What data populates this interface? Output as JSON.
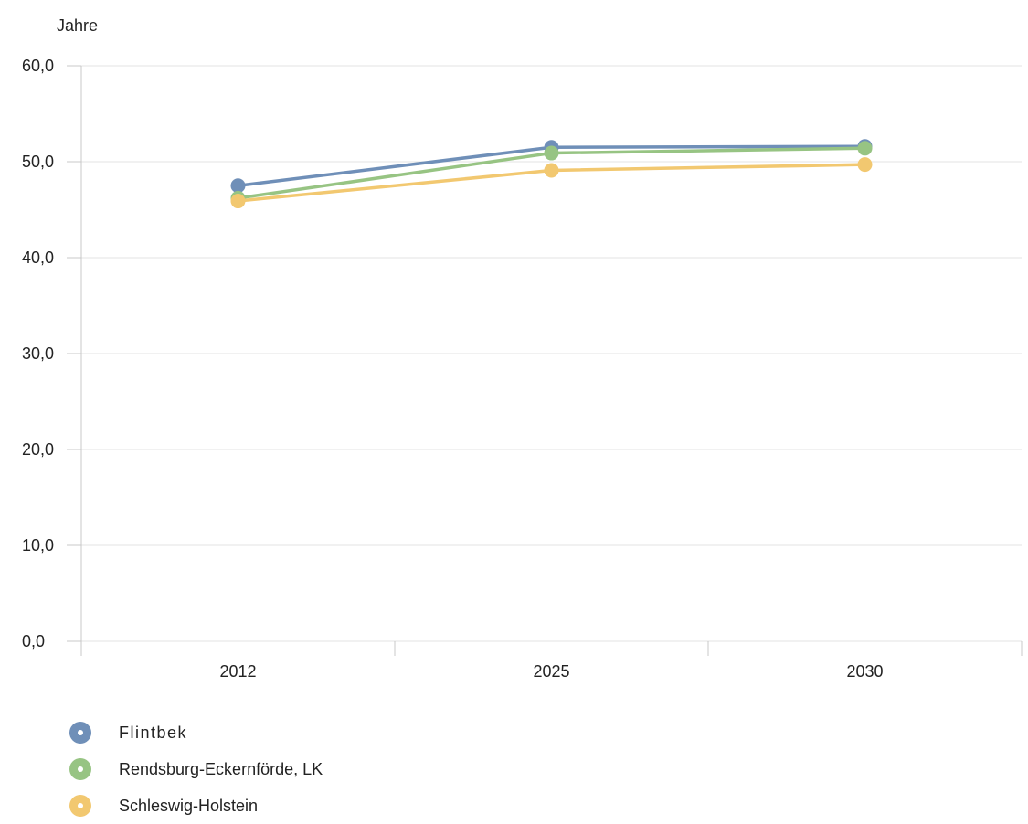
{
  "chart_data": {
    "type": "line",
    "title": "",
    "unit_label": "Jahre",
    "xlabel": "",
    "ylabel": "Jahre",
    "categories": [
      "2012",
      "2025",
      "2030"
    ],
    "ylim": [
      0,
      60
    ],
    "yticks": [
      "0,0",
      "10,0",
      "20,0",
      "30,0",
      "40,0",
      "50,0",
      "60,0"
    ],
    "ytick_values": [
      0,
      10,
      20,
      30,
      40,
      50,
      60
    ],
    "grid": true,
    "legend_position": "bottom-left",
    "series": [
      {
        "name": "Flintbek",
        "color": "#6f8fb8",
        "values": [
          47.5,
          51.5,
          51.6
        ]
      },
      {
        "name": "Rendsburg-Eckernförde, LK",
        "color": "#97c483",
        "values": [
          46.2,
          50.9,
          51.4
        ]
      },
      {
        "name": "Schleswig-Holstein",
        "color": "#f2c870",
        "values": [
          45.9,
          49.1,
          49.7
        ]
      }
    ]
  }
}
